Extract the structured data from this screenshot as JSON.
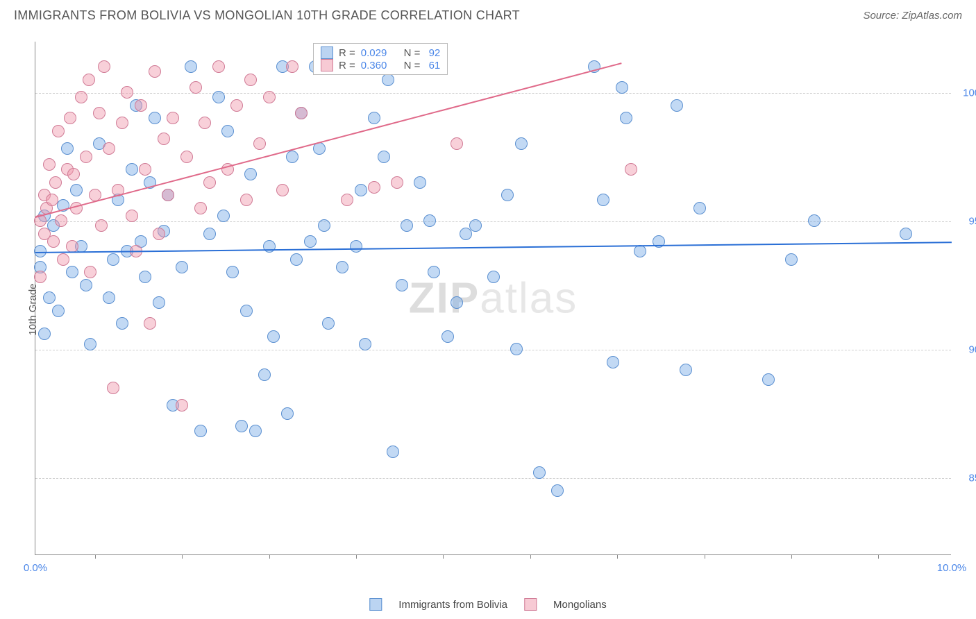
{
  "title": "IMMIGRANTS FROM BOLIVIA VS MONGOLIAN 10TH GRADE CORRELATION CHART",
  "source": "Source: ZipAtlas.com",
  "ylabel": "10th Grade",
  "watermark_a": "ZIP",
  "watermark_b": "atlas",
  "chart": {
    "type": "scatter",
    "xlim": [
      0,
      10
    ],
    "ylim": [
      82,
      102
    ],
    "xticks": [
      0.0,
      10.0
    ],
    "xtick_labels": [
      "0.0%",
      "10.0%"
    ],
    "xtick_minor_positions": [
      0.65,
      1.6,
      2.55,
      3.5,
      4.45,
      5.4,
      6.35,
      7.3,
      8.25,
      9.2
    ],
    "yticks": [
      85.0,
      90.0,
      95.0,
      100.0
    ],
    "ytick_labels": [
      "85.0%",
      "90.0%",
      "95.0%",
      "100.0%"
    ],
    "background_color": "#ffffff",
    "grid_color": "#d0d0d0",
    "marker_radius": 9,
    "series": [
      {
        "name": "Immigrants from Bolivia",
        "color_fill": "rgba(120,170,230,0.45)",
        "color_stroke": "#5a8fd0",
        "R": "0.029",
        "N": "92",
        "trend": {
          "x1": 0,
          "y1": 93.8,
          "x2": 10,
          "y2": 94.2,
          "color": "#2a6fd6"
        },
        "points": [
          [
            0.05,
            93.8
          ],
          [
            0.05,
            93.2
          ],
          [
            0.1,
            90.6
          ],
          [
            0.1,
            95.2
          ],
          [
            0.15,
            92.0
          ],
          [
            0.2,
            94.8
          ],
          [
            0.25,
            91.5
          ],
          [
            0.3,
            95.6
          ],
          [
            0.35,
            97.8
          ],
          [
            0.4,
            93.0
          ],
          [
            0.45,
            96.2
          ],
          [
            0.5,
            94.0
          ],
          [
            0.55,
            92.5
          ],
          [
            0.6,
            90.2
          ],
          [
            0.7,
            98.0
          ],
          [
            0.8,
            92.0
          ],
          [
            0.85,
            93.5
          ],
          [
            0.9,
            95.8
          ],
          [
            0.95,
            91.0
          ],
          [
            1.0,
            93.8
          ],
          [
            1.05,
            97.0
          ],
          [
            1.1,
            99.5
          ],
          [
            1.15,
            94.2
          ],
          [
            1.2,
            92.8
          ],
          [
            1.25,
            96.5
          ],
          [
            1.3,
            99.0
          ],
          [
            1.35,
            91.8
          ],
          [
            1.4,
            94.6
          ],
          [
            1.45,
            96.0
          ],
          [
            1.5,
            87.8
          ],
          [
            1.6,
            93.2
          ],
          [
            1.7,
            101.0
          ],
          [
            1.8,
            86.8
          ],
          [
            1.9,
            94.5
          ],
          [
            2.0,
            99.8
          ],
          [
            2.05,
            95.2
          ],
          [
            2.1,
            98.5
          ],
          [
            2.15,
            93.0
          ],
          [
            2.25,
            87.0
          ],
          [
            2.3,
            91.5
          ],
          [
            2.35,
            96.8
          ],
          [
            2.4,
            86.8
          ],
          [
            2.5,
            89.0
          ],
          [
            2.55,
            94.0
          ],
          [
            2.6,
            90.5
          ],
          [
            2.7,
            101.0
          ],
          [
            2.75,
            87.5
          ],
          [
            2.8,
            97.5
          ],
          [
            2.85,
            93.5
          ],
          [
            2.9,
            99.2
          ],
          [
            3.0,
            94.2
          ],
          [
            3.05,
            101.0
          ],
          [
            3.1,
            97.8
          ],
          [
            3.15,
            94.8
          ],
          [
            3.2,
            91.0
          ],
          [
            3.35,
            93.2
          ],
          [
            3.5,
            94.0
          ],
          [
            3.55,
            96.2
          ],
          [
            3.6,
            90.2
          ],
          [
            3.7,
            99.0
          ],
          [
            3.8,
            97.5
          ],
          [
            3.85,
            100.5
          ],
          [
            3.9,
            86.0
          ],
          [
            4.0,
            92.5
          ],
          [
            4.05,
            94.8
          ],
          [
            4.2,
            96.5
          ],
          [
            4.3,
            95.0
          ],
          [
            4.35,
            93.0
          ],
          [
            4.5,
            90.5
          ],
          [
            4.6,
            91.8
          ],
          [
            4.7,
            94.5
          ],
          [
            4.8,
            94.8
          ],
          [
            5.0,
            92.8
          ],
          [
            5.15,
            96.0
          ],
          [
            5.25,
            90.0
          ],
          [
            5.3,
            98.0
          ],
          [
            5.5,
            85.2
          ],
          [
            5.7,
            84.5
          ],
          [
            6.1,
            101.0
          ],
          [
            6.2,
            95.8
          ],
          [
            6.3,
            89.5
          ],
          [
            6.4,
            100.2
          ],
          [
            6.45,
            99.0
          ],
          [
            6.6,
            93.8
          ],
          [
            6.8,
            94.2
          ],
          [
            7.0,
            99.5
          ],
          [
            7.1,
            89.2
          ],
          [
            7.25,
            95.5
          ],
          [
            8.0,
            88.8
          ],
          [
            8.25,
            93.5
          ],
          [
            8.5,
            95.0
          ],
          [
            9.5,
            94.5
          ]
        ]
      },
      {
        "name": "Mongolians",
        "color_fill": "rgba(240,150,170,0.45)",
        "color_stroke": "#d07a95",
        "R": "0.360",
        "N": "61",
        "trend": {
          "x1": 0,
          "y1": 95.2,
          "x2": 6.4,
          "y2": 101.2,
          "color": "#e06a8a"
        },
        "points": [
          [
            0.05,
            92.8
          ],
          [
            0.05,
            95.0
          ],
          [
            0.1,
            94.5
          ],
          [
            0.1,
            96.0
          ],
          [
            0.12,
            95.5
          ],
          [
            0.15,
            97.2
          ],
          [
            0.18,
            95.8
          ],
          [
            0.2,
            94.2
          ],
          [
            0.22,
            96.5
          ],
          [
            0.25,
            98.5
          ],
          [
            0.28,
            95.0
          ],
          [
            0.3,
            93.5
          ],
          [
            0.35,
            97.0
          ],
          [
            0.38,
            99.0
          ],
          [
            0.4,
            94.0
          ],
          [
            0.42,
            96.8
          ],
          [
            0.45,
            95.5
          ],
          [
            0.5,
            99.8
          ],
          [
            0.55,
            97.5
          ],
          [
            0.58,
            100.5
          ],
          [
            0.6,
            93.0
          ],
          [
            0.65,
            96.0
          ],
          [
            0.7,
            99.2
          ],
          [
            0.72,
            94.8
          ],
          [
            0.75,
            101.0
          ],
          [
            0.8,
            97.8
          ],
          [
            0.85,
            88.5
          ],
          [
            0.9,
            96.2
          ],
          [
            0.95,
            98.8
          ],
          [
            1.0,
            100.0
          ],
          [
            1.05,
            95.2
          ],
          [
            1.1,
            93.8
          ],
          [
            1.15,
            99.5
          ],
          [
            1.2,
            97.0
          ],
          [
            1.25,
            91.0
          ],
          [
            1.3,
            100.8
          ],
          [
            1.35,
            94.5
          ],
          [
            1.4,
            98.2
          ],
          [
            1.45,
            96.0
          ],
          [
            1.5,
            99.0
          ],
          [
            1.6,
            87.8
          ],
          [
            1.65,
            97.5
          ],
          [
            1.75,
            100.2
          ],
          [
            1.8,
            95.5
          ],
          [
            1.85,
            98.8
          ],
          [
            1.9,
            96.5
          ],
          [
            2.0,
            101.0
          ],
          [
            2.1,
            97.0
          ],
          [
            2.2,
            99.5
          ],
          [
            2.3,
            95.8
          ],
          [
            2.35,
            100.5
          ],
          [
            2.45,
            98.0
          ],
          [
            2.55,
            99.8
          ],
          [
            2.7,
            96.2
          ],
          [
            2.8,
            101.0
          ],
          [
            2.9,
            99.2
          ],
          [
            3.4,
            95.8
          ],
          [
            3.7,
            96.3
          ],
          [
            3.95,
            96.5
          ],
          [
            4.6,
            98.0
          ],
          [
            6.5,
            97.0
          ]
        ]
      }
    ]
  },
  "legend_top": {
    "R_label": "R =",
    "N_label": "N ="
  },
  "legend_bottom": {
    "s1": "Immigrants from Bolivia",
    "s2": "Mongolians"
  }
}
